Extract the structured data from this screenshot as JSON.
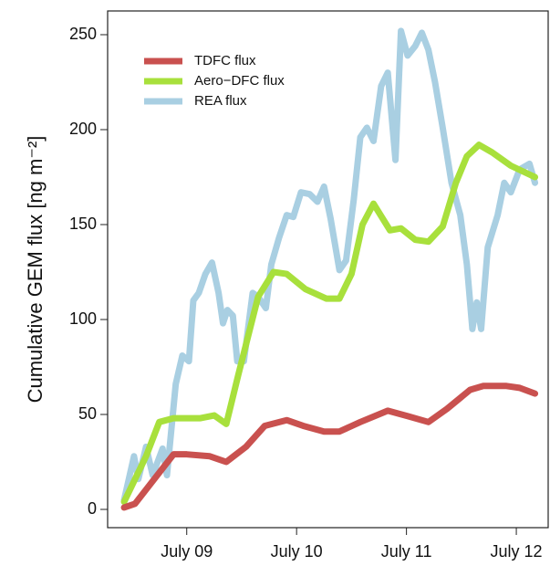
{
  "chart_data": {
    "type": "line",
    "ylabel": "Cumulative GEM flux [ng m⁻²]",
    "xlim": [
      8.28,
      12.29
    ],
    "ylim": [
      0,
      250
    ],
    "yticks": [
      0,
      50,
      100,
      150,
      200,
      250
    ],
    "xticks": [
      {
        "value": 9,
        "label": "July 09"
      },
      {
        "value": 10,
        "label": "July 10"
      },
      {
        "value": 11,
        "label": "July 11"
      },
      {
        "value": 12,
        "label": "July 12"
      }
    ],
    "grid": false,
    "legend": "top-left",
    "series": [
      {
        "name": "TDFC flux",
        "color": "#c9514f",
        "x": [
          8.43,
          8.53,
          8.88,
          9.0,
          9.21,
          9.36,
          9.54,
          9.71,
          9.91,
          10.06,
          10.25,
          10.39,
          10.58,
          10.83,
          11.02,
          11.2,
          11.37,
          11.58,
          11.7,
          11.91,
          12.03,
          12.17
        ],
        "values": [
          1,
          3,
          29,
          29,
          28,
          25,
          33,
          44,
          47,
          44,
          41,
          41,
          46,
          52,
          49,
          46,
          53,
          63,
          65,
          65,
          64,
          61
        ]
      },
      {
        "name": "Aero−DFC flux",
        "color": "#a8e03c",
        "x": [
          8.43,
          8.63,
          8.75,
          8.88,
          9.12,
          9.25,
          9.36,
          9.47,
          9.65,
          9.79,
          9.91,
          10.08,
          10.27,
          10.39,
          10.5,
          10.6,
          10.7,
          10.85,
          10.95,
          11.08,
          11.2,
          11.33,
          11.45,
          11.55,
          11.66,
          11.78,
          11.95,
          12.17
        ],
        "values": [
          4,
          28,
          46,
          48,
          48,
          49.5,
          45,
          71,
          112,
          125,
          124,
          116,
          111,
          111,
          124,
          150,
          161,
          147,
          148,
          142,
          141,
          149,
          172,
          186,
          192,
          188,
          181,
          175
        ]
      },
      {
        "name": "REA flux",
        "color": "#a9cfe2",
        "x": [
          8.43,
          8.52,
          8.56,
          8.63,
          8.69,
          8.78,
          8.82,
          8.9,
          8.96,
          9.02,
          9.06,
          9.11,
          9.17,
          9.23,
          9.29,
          9.33,
          9.37,
          9.42,
          9.46,
          9.52,
          9.6,
          9.65,
          9.72,
          9.77,
          9.84,
          9.91,
          9.97,
          10.04,
          10.12,
          10.19,
          10.25,
          10.31,
          10.39,
          10.45,
          10.52,
          10.58,
          10.64,
          10.7,
          10.77,
          10.83,
          10.9,
          10.95,
          11.01,
          11.08,
          11.14,
          11.2,
          11.26,
          11.33,
          11.41,
          11.49,
          11.55,
          11.6,
          11.64,
          11.68,
          11.74,
          11.83,
          11.89,
          11.95,
          12.03,
          12.12,
          12.17
        ],
        "values": [
          5,
          28,
          16,
          33,
          18,
          32,
          18,
          66,
          81,
          78,
          110,
          114,
          124,
          130,
          114,
          98,
          105,
          102,
          78,
          78,
          114,
          112,
          106,
          129,
          143,
          155,
          154,
          167,
          166,
          162,
          170,
          153,
          126,
          131,
          163,
          196,
          201,
          194,
          223,
          230,
          184,
          252,
          239,
          244,
          251,
          242,
          225,
          201,
          172,
          155,
          129,
          95,
          109,
          95,
          138,
          155,
          172,
          167,
          179,
          182,
          172
        ]
      }
    ]
  }
}
